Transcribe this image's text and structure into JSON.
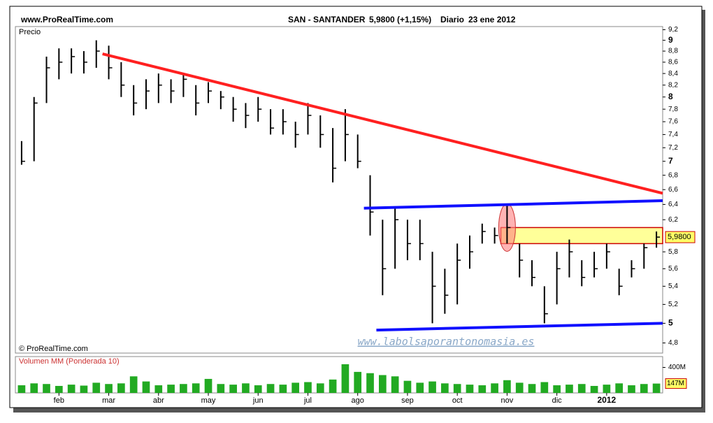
{
  "header": {
    "site": "www.ProRealTime.com",
    "symbol": "SAN - SANTANDER",
    "quote": "5,9800 (+1,15%)",
    "period": "Diario",
    "date": "23 ene 2012"
  },
  "watermark": "www.labolsaporantonomasia.es",
  "chart_data": [
    {
      "type": "ohlc",
      "title": "Precio",
      "copyright": "© ProRealTime.com",
      "log_scale": true,
      "color": "#000000",
      "categories": [
        null,
        null,
        null,
        "feb",
        null,
        null,
        null,
        "mar",
        null,
        null,
        null,
        "abr",
        null,
        null,
        null,
        "may",
        null,
        null,
        null,
        "jun",
        null,
        null,
        null,
        "jul",
        null,
        null,
        null,
        "ago",
        null,
        null,
        null,
        "sep",
        null,
        null,
        null,
        "oct",
        null,
        null,
        null,
        "nov",
        null,
        null,
        null,
        "dic",
        null,
        null,
        null,
        "2012",
        null,
        null,
        null,
        null
      ],
      "close": [
        7.0,
        7.9,
        8.5,
        8.6,
        8.7,
        8.6,
        8.8,
        8.5,
        8.2,
        7.9,
        8.1,
        8.2,
        8.1,
        8.3,
        7.9,
        8.1,
        8.0,
        7.8,
        7.7,
        7.8,
        7.5,
        7.6,
        7.4,
        7.7,
        7.4,
        6.9,
        7.4,
        7.0,
        6.3,
        5.6,
        6.2,
        5.9,
        5.9,
        5.4,
        5.3,
        5.7,
        5.8,
        6.05,
        6.0,
        6.1,
        5.7,
        5.5,
        5.1,
        5.6,
        5.8,
        5.5,
        5.6,
        5.8,
        5.4,
        5.6,
        5.85,
        5.98
      ],
      "high": [
        7.3,
        8.0,
        8.7,
        8.85,
        8.85,
        8.8,
        9.0,
        8.9,
        8.6,
        8.2,
        8.3,
        8.4,
        8.3,
        8.4,
        8.2,
        8.25,
        8.1,
        8.0,
        7.9,
        8.0,
        7.8,
        7.8,
        7.6,
        7.9,
        7.7,
        7.5,
        7.8,
        7.4,
        6.8,
        6.2,
        6.35,
        6.2,
        6.2,
        5.8,
        5.6,
        5.9,
        6.0,
        6.15,
        6.1,
        6.4,
        5.9,
        5.7,
        5.4,
        5.8,
        5.95,
        5.7,
        5.8,
        5.9,
        5.6,
        5.7,
        5.9,
        6.05
      ],
      "low": [
        6.95,
        7.0,
        7.9,
        8.3,
        8.4,
        8.4,
        8.5,
        8.3,
        8.0,
        7.7,
        7.8,
        7.9,
        7.9,
        8.0,
        7.7,
        7.9,
        7.8,
        7.6,
        7.5,
        7.6,
        7.4,
        7.4,
        7.2,
        7.4,
        7.2,
        6.7,
        7.0,
        6.9,
        6.0,
        5.3,
        5.6,
        5.7,
        5.7,
        5.0,
        5.1,
        5.2,
        5.6,
        5.9,
        5.9,
        5.9,
        5.5,
        5.4,
        5.0,
        5.2,
        5.5,
        5.4,
        5.5,
        5.6,
        5.3,
        5.5,
        5.6,
        5.85
      ],
      "ylim": [
        4.7,
        9.26
      ],
      "yticks": [
        {
          "value": 9.2,
          "label": "9,2"
        },
        9,
        {
          "value": 8.8,
          "label": "8,8"
        },
        {
          "value": 8.6,
          "label": "8,6"
        },
        {
          "value": 8.4,
          "label": "8,4"
        },
        {
          "value": 8.2,
          "label": "8,2"
        },
        8,
        {
          "value": 7.8,
          "label": "7,8"
        },
        {
          "value": 7.6,
          "label": "7,6"
        },
        {
          "value": 7.4,
          "label": "7,4"
        },
        {
          "value": 7.2,
          "label": "7,2"
        },
        7,
        {
          "value": 6.8,
          "label": "6,8"
        },
        {
          "value": 6.6,
          "label": "6,6"
        },
        {
          "value": 6.4,
          "label": "6,4"
        },
        {
          "value": 6.2,
          "label": "6,2"
        },
        {
          "value": 5.8,
          "label": "5,8"
        },
        {
          "value": 5.6,
          "label": "5,6"
        },
        {
          "value": 5.4,
          "label": "5,4"
        },
        {
          "value": 5.2,
          "label": "5,2"
        },
        5,
        {
          "value": 4.8,
          "label": "4,8"
        }
      ],
      "current": {
        "value": 5.98,
        "label": "5,9800"
      },
      "trendlines": [
        {
          "color": "#ff2020",
          "x": [
            7,
            52
          ],
          "y": [
            8.75,
            6.55
          ]
        },
        {
          "color": "#1010ff",
          "x": [
            28,
            52
          ],
          "y": [
            6.35,
            6.45
          ]
        },
        {
          "color": "#1010ff",
          "x": [
            29,
            52
          ],
          "y": [
            4.93,
            5.0
          ]
        }
      ],
      "zone": {
        "color": "#ffff99",
        "x": [
          39,
          52
        ],
        "y": [
          5.9,
          6.1
        ]
      },
      "highlight": {
        "color": "#ff8080",
        "x": 39,
        "y": 6.1
      }
    },
    {
      "type": "bar",
      "title": "Volumen MM (Ponderada 10)",
      "color": "#22aa22",
      "values": [
        120,
        150,
        140,
        110,
        130,
        115,
        160,
        140,
        150,
        260,
        180,
        120,
        130,
        140,
        150,
        220,
        140,
        130,
        150,
        120,
        140,
        130,
        160,
        170,
        150,
        210,
        450,
        330,
        310,
        280,
        260,
        190,
        160,
        180,
        150,
        140,
        130,
        120,
        150,
        200,
        160,
        140,
        170,
        120,
        130,
        140,
        110,
        130,
        150,
        120,
        140,
        147
      ],
      "ylim": [
        0,
        570
      ],
      "yticks": [
        {
          "value": 400,
          "label": "400M"
        }
      ],
      "current": {
        "value": 147,
        "label": "147M"
      }
    }
  ]
}
